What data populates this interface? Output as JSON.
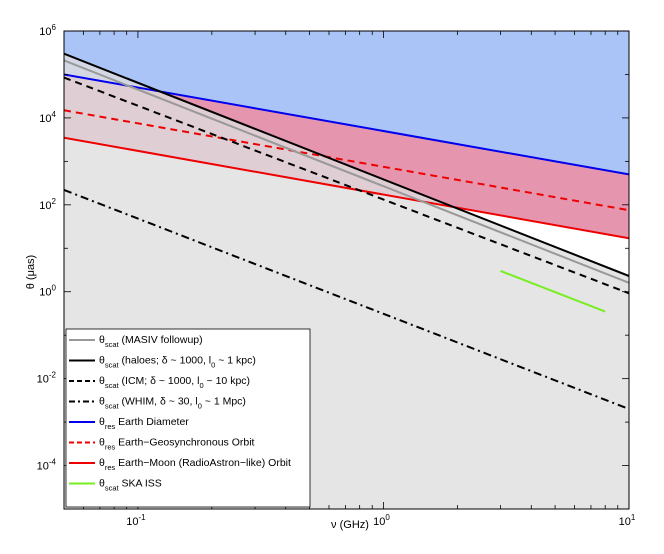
{
  "chart_data": {
    "type": "line",
    "xlabel": "ν (GHz)",
    "ylabel": "θ (μas)",
    "xscale": "log",
    "yscale": "log",
    "xlim": [
      0.05,
      10
    ],
    "ylim": [
      1e-05,
      1000000
    ],
    "x_ticks": [
      {
        "value": 0.1,
        "base": "10",
        "exp": "-1"
      },
      {
        "value": 1,
        "base": "10",
        "exp": "0"
      },
      {
        "value": 10,
        "base": "10",
        "exp": "1"
      }
    ],
    "y_ticks": [
      {
        "value": 0.0001,
        "base": "10",
        "exp": "-4"
      },
      {
        "value": 0.01,
        "base": "10",
        "exp": "-2"
      },
      {
        "value": 1,
        "base": "10",
        "exp": "0"
      },
      {
        "value": 100,
        "base": "10",
        "exp": "2"
      },
      {
        "value": 10000,
        "base": "10",
        "exp": "4"
      },
      {
        "value": 1000000,
        "base": "10",
        "exp": "6"
      }
    ],
    "grid": false,
    "legend_position": "bottom-left",
    "series": [
      {
        "sym": "θ",
        "sub": "scat",
        "label": "(MASIV followup)",
        "color": "#999999",
        "dash": "solid",
        "x": [
          0.05,
          10
        ],
        "y": [
          210000,
          1.6
        ]
      },
      {
        "sym": "θ",
        "sub": "scat",
        "label": "(haloes; δ ~ 1000, l",
        "sub2": "0",
        "label2": " ~ 1 kpc)",
        "color": "#000000",
        "dash": "solid",
        "x": [
          0.05,
          10
        ],
        "y": [
          300000,
          2.3
        ]
      },
      {
        "sym": "θ",
        "sub": "scat",
        "label": "(ICM; δ ~ 1000, l",
        "sub2": "0",
        "label2": " ~ 10 kpc)",
        "color": "#000000",
        "dash": "dashed",
        "x": [
          0.05,
          10
        ],
        "y": [
          85000,
          0.92
        ]
      },
      {
        "sym": "θ",
        "sub": "scat",
        "label": "(WHIM, δ ~ 30, l",
        "sub2": "0",
        "label2": " ~ 1 Mpc)",
        "color": "#000000",
        "dash": "dashdot",
        "x": [
          0.05,
          10
        ],
        "y": [
          220,
          0.002
        ]
      },
      {
        "sym": "θ",
        "sub": "res",
        "label": "Earth Diameter",
        "color": "#0000ee",
        "dash": "solid",
        "x": [
          0.05,
          10
        ],
        "y": [
          100000,
          500
        ]
      },
      {
        "sym": "θ",
        "sub": "res",
        "label": "Earth−Geosynchronous Orbit",
        "color": "#ee0000",
        "dash": "dashed",
        "x": [
          0.05,
          10
        ],
        "y": [
          15000,
          75
        ]
      },
      {
        "sym": "θ",
        "sub": "res",
        "label": "Earth−Moon (RadioAstron−like) Orbit",
        "color": "#ee0000",
        "dash": "solid",
        "x": [
          0.05,
          10
        ],
        "y": [
          3500,
          17
        ]
      },
      {
        "sym": "θ",
        "sub": "scat",
        "label": "SKA ISS",
        "color": "#77ee22",
        "dash": "solid",
        "x": [
          3,
          8
        ],
        "y": [
          3,
          0.35
        ]
      }
    ],
    "regions": [
      {
        "name": "above-earth-diameter",
        "color": "#abc4f8"
      },
      {
        "name": "between-diameter-and-moon",
        "color": "#e596ae"
      },
      {
        "name": "below-scattering",
        "color": "#dedede"
      }
    ]
  }
}
